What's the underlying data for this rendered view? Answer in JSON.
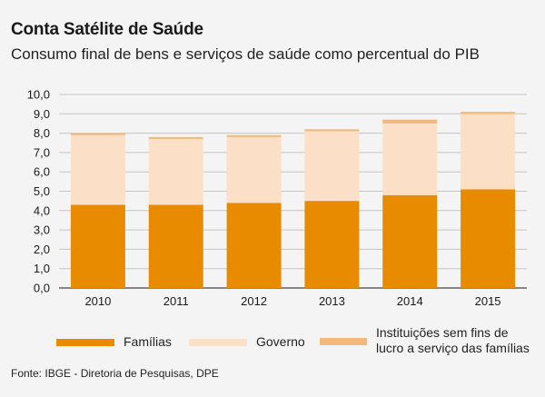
{
  "header": {
    "title": "Conta Satélite de Saúde",
    "subtitle": "Consumo final de bens e serviços de saúde como percentual do PIB"
  },
  "chart_data": {
    "type": "bar",
    "stacked": true,
    "categories": [
      "2010",
      "2011",
      "2012",
      "2013",
      "2014",
      "2015"
    ],
    "series": [
      {
        "name": "Famílias",
        "color": "#e88b00",
        "values": [
          4.3,
          4.3,
          4.4,
          4.5,
          4.8,
          5.1
        ]
      },
      {
        "name": "Governo",
        "color": "#fcdfc7",
        "values": [
          3.6,
          3.4,
          3.4,
          3.6,
          3.7,
          3.9
        ]
      },
      {
        "name": "Instituições sem fins de lucro a serviço das famílias",
        "color": "#f4b97a",
        "values": [
          0.1,
          0.1,
          0.1,
          0.1,
          0.2,
          0.1
        ]
      }
    ],
    "yticks": [
      "0,0",
      "1,0",
      "2,0",
      "3,0",
      "4,0",
      "5,0",
      "6,0",
      "7,0",
      "8,0",
      "9,0",
      "10,0"
    ],
    "ylim": [
      0,
      10
    ],
    "grid": true
  },
  "legend": {
    "items": [
      {
        "label": "Famílias",
        "color": "#e88b00"
      },
      {
        "label": "Governo",
        "color": "#fcdfc7"
      },
      {
        "label_line1": "Instituições sem fins de",
        "label_line2": "lucro a serviço das famílias",
        "color": "#f4b97a"
      }
    ]
  },
  "footer": {
    "source": "Fonte: IBGE - Diretoria de Pesquisas, DPE"
  }
}
